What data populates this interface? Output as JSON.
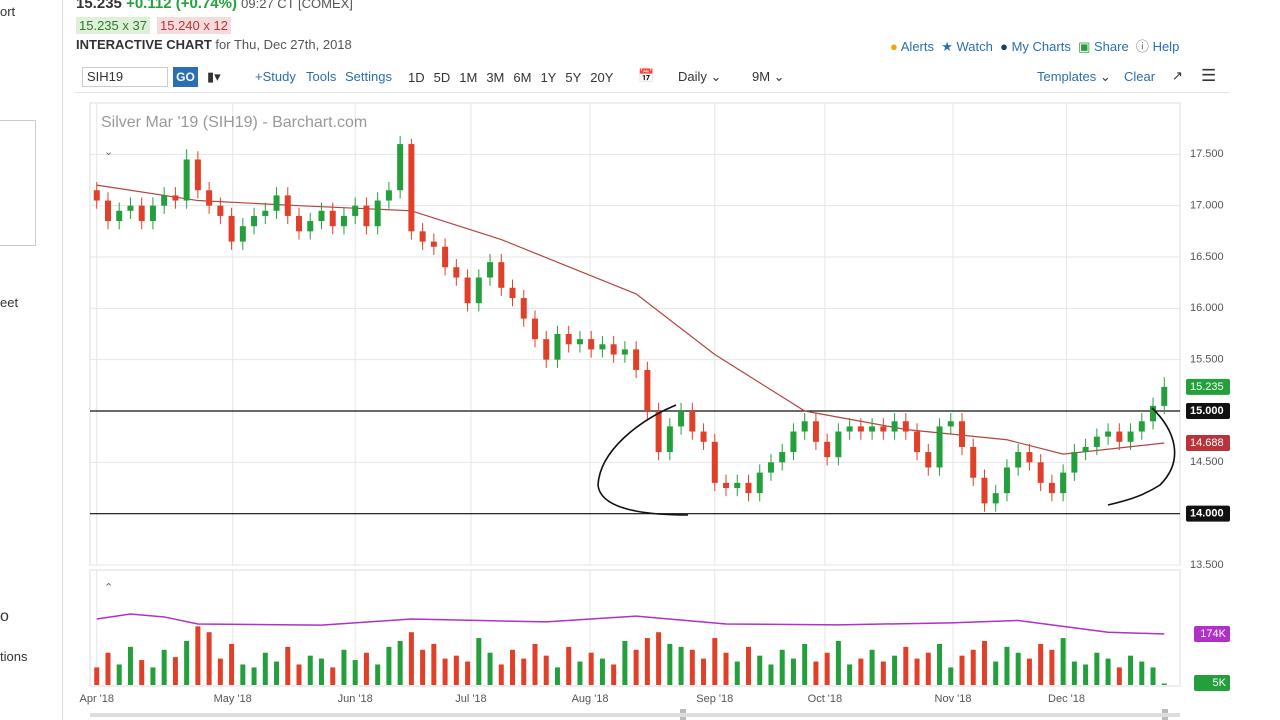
{
  "sidebar": {
    "items": [
      "ort",
      "eet",
      "o",
      "tions"
    ]
  },
  "header": {
    "last": "15.235",
    "change": "+0.112 (+0.74%)",
    "time": "09:27 CT [COMEX]",
    "bid": "15.235 x 37",
    "ask": "15.240 x 12",
    "chart_label": "INTERACTIVE CHART",
    "date": "for Thu, Dec 27th, 2018",
    "links": [
      "Alerts",
      "Watch",
      "My Charts",
      "Share",
      "Help"
    ]
  },
  "toolbar": {
    "symbol": "SIH19",
    "go": "GO",
    "study": "+Study",
    "tools": "Tools",
    "settings": "Settings",
    "ranges": [
      "1D",
      "5D",
      "1M",
      "3M",
      "6M",
      "1Y",
      "5Y",
      "20Y"
    ],
    "interval": "Daily",
    "period": "9M",
    "templates": "Templates",
    "clear": "Clear"
  },
  "chart_data": [
    {
      "type": "candlestick",
      "title": "Silver Mar '19 (SIH19) - Barchart.com",
      "up_color": "#23a03c",
      "down_color": "#e0402a",
      "xlim": [
        -0.6,
        96.4
      ],
      "xticks": [
        {
          "value": 0,
          "label": "Apr '18"
        },
        {
          "value": 12.1,
          "label": "May '18"
        },
        {
          "value": 23,
          "label": "Jun '18"
        },
        {
          "value": 33.3,
          "label": "Jul '18"
        },
        {
          "value": 43.9,
          "label": "Aug '18"
        },
        {
          "value": 55,
          "label": "Sep '18"
        },
        {
          "value": 64.8,
          "label": "Oct '18"
        },
        {
          "value": 76.2,
          "label": "Nov '18"
        },
        {
          "value": 86.3,
          "label": "Dec '18"
        }
      ],
      "ylim": [
        13.5,
        18.0
      ],
      "yticks": [
        {
          "value": 13.5,
          "label": "13.500"
        },
        {
          "value": 14.0,
          "label": "14.000"
        },
        {
          "value": 14.5,
          "label": "14.500"
        },
        {
          "value": 15.0,
          "label": "15.000"
        },
        {
          "value": 15.5,
          "label": "15.500"
        },
        {
          "value": 16.0,
          "label": "16.000"
        },
        {
          "value": 16.5,
          "label": "16.500"
        },
        {
          "value": 17.0,
          "label": "17.000"
        },
        {
          "value": 17.5,
          "label": "17.500"
        }
      ],
      "grid": true,
      "open": [
        17.15,
        17.05,
        16.85,
        16.95,
        17.0,
        16.85,
        17.0,
        17.1,
        17.05,
        17.45,
        17.15,
        17.0,
        16.9,
        16.65,
        16.8,
        16.9,
        16.95,
        17.1,
        16.9,
        16.75,
        16.85,
        16.95,
        16.8,
        16.9,
        17.0,
        16.8,
        17.05,
        17.15,
        17.6,
        16.75,
        16.65,
        16.6,
        16.4,
        16.3,
        16.05,
        16.3,
        16.45,
        16.2,
        16.1,
        15.9,
        15.7,
        15.5,
        15.75,
        15.65,
        15.7,
        15.6,
        15.65,
        15.55,
        15.6,
        15.4,
        15.0,
        14.6,
        14.85,
        15.0,
        14.8,
        14.7,
        14.3,
        14.25,
        14.3,
        14.2,
        14.4,
        14.5,
        14.6,
        14.8,
        14.9,
        14.7,
        14.55,
        14.8,
        14.85,
        14.8,
        14.85,
        14.8,
        14.9,
        14.8,
        14.6,
        14.45,
        14.85,
        14.9,
        14.65,
        14.35,
        14.1,
        14.2,
        14.45,
        14.6,
        14.5,
        14.3,
        14.2,
        14.4,
        14.6,
        14.65,
        14.75,
        14.8,
        14.7,
        14.8,
        14.9,
        15.05
      ],
      "high": [
        17.23,
        17.13,
        17.03,
        17.08,
        17.08,
        17.08,
        17.18,
        17.18,
        17.55,
        17.53,
        17.23,
        17.08,
        16.98,
        16.88,
        16.98,
        17.03,
        17.18,
        17.18,
        16.98,
        16.93,
        17.03,
        17.03,
        16.98,
        17.08,
        17.08,
        17.13,
        17.23,
        17.68,
        17.65,
        16.83,
        16.73,
        16.68,
        16.48,
        16.38,
        16.38,
        16.53,
        16.53,
        16.28,
        16.18,
        15.98,
        15.78,
        15.83,
        15.83,
        15.78,
        15.78,
        15.73,
        15.73,
        15.68,
        15.68,
        15.48,
        15.08,
        14.93,
        15.08,
        15.08,
        14.88,
        14.78,
        14.38,
        14.38,
        14.38,
        14.48,
        14.58,
        14.68,
        14.88,
        14.98,
        14.98,
        14.78,
        14.88,
        14.93,
        14.93,
        14.93,
        14.93,
        14.98,
        14.98,
        14.88,
        14.68,
        14.93,
        14.98,
        14.98,
        14.73,
        14.43,
        14.28,
        14.53,
        14.68,
        14.68,
        14.58,
        14.38,
        14.48,
        14.68,
        14.73,
        14.83,
        14.88,
        14.88,
        14.88,
        14.98,
        15.13,
        15.33
      ],
      "low": [
        16.97,
        16.77,
        16.77,
        16.87,
        16.77,
        16.77,
        16.92,
        16.97,
        16.97,
        17.07,
        16.92,
        16.82,
        16.57,
        16.57,
        16.72,
        16.82,
        16.87,
        16.82,
        16.67,
        16.67,
        16.77,
        16.72,
        16.72,
        16.82,
        16.72,
        16.72,
        16.97,
        17.07,
        16.67,
        16.57,
        16.52,
        16.32,
        16.22,
        15.97,
        15.97,
        16.22,
        16.12,
        16.02,
        15.82,
        15.62,
        15.42,
        15.42,
        15.57,
        15.57,
        15.52,
        15.52,
        15.47,
        15.47,
        15.32,
        14.92,
        14.52,
        14.52,
        14.77,
        14.72,
        14.62,
        14.22,
        14.17,
        14.17,
        14.12,
        14.12,
        14.32,
        14.42,
        14.52,
        14.72,
        14.62,
        14.47,
        14.47,
        14.72,
        14.72,
        14.72,
        14.72,
        14.72,
        14.72,
        14.52,
        14.37,
        14.37,
        14.77,
        14.57,
        14.27,
        14.02,
        14.02,
        14.12,
        14.37,
        14.42,
        14.22,
        14.12,
        14.12,
        14.32,
        14.52,
        14.57,
        14.67,
        14.62,
        14.62,
        14.72,
        14.82,
        14.97
      ],
      "close": [
        17.05,
        16.85,
        16.95,
        17.0,
        16.85,
        17.0,
        17.1,
        17.05,
        17.45,
        17.15,
        17.0,
        16.9,
        16.65,
        16.8,
        16.9,
        16.95,
        17.1,
        16.9,
        16.75,
        16.85,
        16.95,
        16.8,
        16.9,
        17.0,
        16.8,
        17.05,
        17.15,
        17.6,
        16.75,
        16.65,
        16.6,
        16.4,
        16.3,
        16.05,
        16.3,
        16.45,
        16.2,
        16.1,
        15.9,
        15.7,
        15.5,
        15.75,
        15.65,
        15.7,
        15.6,
        15.65,
        15.55,
        15.6,
        15.4,
        15.0,
        14.6,
        14.85,
        15.0,
        14.8,
        14.7,
        14.3,
        14.25,
        14.3,
        14.2,
        14.4,
        14.5,
        14.6,
        14.8,
        14.9,
        14.7,
        14.55,
        14.8,
        14.85,
        14.8,
        14.85,
        14.8,
        14.9,
        14.8,
        14.6,
        14.45,
        14.85,
        14.9,
        14.65,
        14.35,
        14.1,
        14.2,
        14.45,
        14.6,
        14.5,
        14.3,
        14.2,
        14.4,
        14.6,
        14.65,
        14.75,
        14.8,
        14.7,
        14.8,
        14.9,
        15.05,
        15.235
      ],
      "lines": [
        {
          "color": "#b5443f",
          "x": [
            0,
            9,
            18,
            28,
            36,
            48,
            55,
            63,
            72,
            81,
            86,
            95
          ],
          "values": [
            17.2,
            17.05,
            17.0,
            16.95,
            16.67,
            16.14,
            15.55,
            15.0,
            14.82,
            14.72,
            14.58,
            14.688
          ]
        }
      ],
      "hlines": [
        {
          "value": 15.0,
          "label": "15.000"
        },
        {
          "value": 14.0,
          "label": "14.000"
        }
      ],
      "price_tags": [
        {
          "value": 15.235,
          "label": "15.235",
          "color": "#23a03c"
        },
        {
          "value": 14.688,
          "label": "14.688",
          "color": "#b8333a"
        }
      ]
    },
    {
      "type": "bar",
      "xlim": [
        -0.6,
        96.4
      ],
      "ylim": [
        0,
        375
      ],
      "values": [
        60,
        110,
        70,
        130,
        85,
        60,
        120,
        95,
        150,
        200,
        180,
        90,
        140,
        70,
        60,
        110,
        80,
        130,
        70,
        100,
        90,
        60,
        120,
        85,
        110,
        70,
        130,
        150,
        180,
        120,
        140,
        90,
        100,
        80,
        160,
        110,
        70,
        120,
        90,
        140,
        100,
        60,
        130,
        80,
        110,
        90,
        70,
        150,
        120,
        160,
        180,
        140,
        130,
        120,
        90,
        160,
        110,
        80,
        130,
        100,
        70,
        120,
        90,
        140,
        80,
        110,
        150,
        70,
        90,
        120,
        80,
        100,
        130,
        90,
        110,
        140,
        60,
        100,
        120,
        150,
        80,
        130,
        110,
        90,
        140,
        120,
        160,
        80,
        70,
        110,
        90,
        60,
        100,
        80,
        60,
        5
      ],
      "lines": [
        {
          "color": "#b030c8",
          "x": [
            0,
            3,
            6,
            9,
            20,
            28,
            40,
            48,
            56,
            66,
            76,
            82,
            86,
            90,
            95
          ],
          "values": [
            225,
            242,
            232,
            208,
            204,
            225,
            215,
            235,
            208,
            205,
            212,
            220,
            200,
            180,
            174
          ]
        }
      ],
      "tags": [
        {
          "value": 174,
          "label": "174K",
          "color": "#b030c8"
        },
        {
          "value": 5,
          "label": "5K",
          "color": "#23a03c"
        }
      ]
    }
  ]
}
